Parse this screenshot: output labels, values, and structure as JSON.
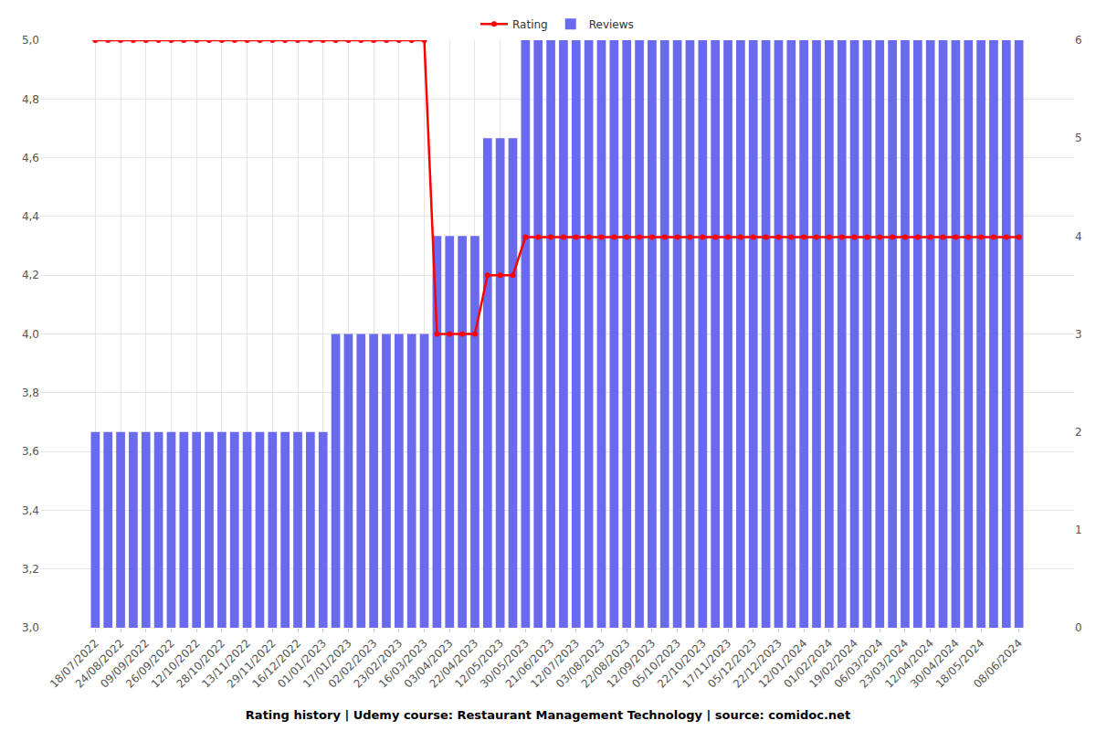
{
  "chart_data": {
    "type": "bar",
    "title": "Rating history | Udemy course: Restaurant Management Technology | source: comidoc.net",
    "categories": [
      "18/07/2022",
      null,
      "24/08/2022",
      null,
      "09/09/2022",
      null,
      "26/09/2022",
      null,
      "12/10/2022",
      null,
      "28/10/2022",
      null,
      "13/11/2022",
      null,
      "29/11/2022",
      null,
      "16/12/2022",
      null,
      "01/01/2023",
      null,
      "17/01/2023",
      null,
      "02/02/2023",
      null,
      "23/02/2023",
      null,
      "16/03/2023",
      null,
      "03/04/2023",
      null,
      "22/04/2023",
      null,
      "12/05/2023",
      null,
      "30/05/2023",
      null,
      "21/06/2023",
      null,
      "12/07/2023",
      null,
      "03/08/2023",
      null,
      "22/08/2023",
      null,
      "12/09/2023",
      null,
      "05/10/2023",
      null,
      "22/10/2023",
      null,
      "17/11/2023",
      null,
      "05/12/2023",
      null,
      "22/12/2023",
      null,
      "12/01/2024",
      null,
      "01/02/2024",
      null,
      "19/02/2024",
      null,
      "06/03/2024",
      null,
      "23/03/2024",
      null,
      "12/04/2024",
      null,
      "30/04/2024",
      null,
      "18/05/2024",
      null,
      null,
      "08/06/2024"
    ],
    "series": [
      {
        "name": "Rating",
        "type": "line",
        "color": "#ff0000",
        "marker": "circle",
        "values": [
          5,
          5,
          5,
          5,
          5,
          5,
          5,
          5,
          5,
          5,
          5,
          5,
          5,
          5,
          5,
          5,
          5,
          5,
          5,
          5,
          5,
          5,
          5,
          5,
          5,
          5,
          5,
          4,
          4,
          4,
          4,
          4.2,
          4.2,
          4.2,
          4.33,
          4.33,
          4.33,
          4.33,
          4.33,
          4.33,
          4.33,
          4.33,
          4.33,
          4.33,
          4.33,
          4.33,
          4.33,
          4.33,
          4.33,
          4.33,
          4.33,
          4.33,
          4.33,
          4.33,
          4.33,
          4.33,
          4.33,
          4.33,
          4.33,
          4.33,
          4.33,
          4.33,
          4.33,
          4.33,
          4.33,
          4.33,
          4.33,
          4.33,
          4.33,
          4.33,
          4.33,
          4.33,
          4.33,
          4.33
        ]
      },
      {
        "name": "Reviews",
        "type": "bar",
        "color": "#6a6aee",
        "axis": "y2",
        "values": [
          2,
          2,
          2,
          2,
          2,
          2,
          2,
          2,
          2,
          2,
          2,
          2,
          2,
          2,
          2,
          2,
          2,
          2,
          2,
          3,
          3,
          3,
          3,
          3,
          3,
          3,
          3,
          4,
          4,
          4,
          4,
          5,
          5,
          5,
          6,
          6,
          6,
          6,
          6,
          6,
          6,
          6,
          6,
          6,
          6,
          6,
          6,
          6,
          6,
          6,
          6,
          6,
          6,
          6,
          6,
          6,
          6,
          6,
          6,
          6,
          6,
          6,
          6,
          6,
          6,
          6,
          6,
          6,
          6,
          6,
          6,
          6,
          6,
          6
        ]
      }
    ],
    "ylim": [
      3,
      5
    ],
    "yticks": [
      {
        "value": 3,
        "label": "3,0"
      },
      {
        "value": 3.2,
        "label": "3,2"
      },
      {
        "value": 3.4,
        "label": "3,4"
      },
      {
        "value": 3.6,
        "label": "3,6"
      },
      {
        "value": 3.8,
        "label": "3,8"
      },
      {
        "value": 4,
        "label": "4,0"
      },
      {
        "value": 4.2,
        "label": "4,2"
      },
      {
        "value": 4.4,
        "label": "4,4"
      },
      {
        "value": 4.6,
        "label": "4,6"
      },
      {
        "value": 4.8,
        "label": "4,8"
      },
      {
        "value": 5,
        "label": "5,0"
      }
    ],
    "y2lim": [
      0,
      6
    ],
    "y2ticks": [
      0,
      1,
      2,
      3,
      4,
      5,
      6
    ],
    "grid": true,
    "legend": "top"
  }
}
